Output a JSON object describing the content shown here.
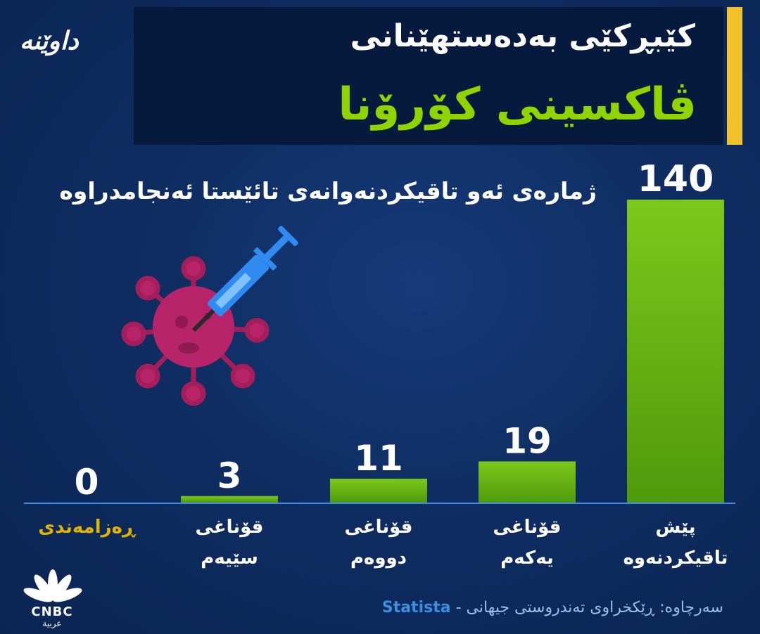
{
  "header": {
    "title_line1": "کێبڕکێی بەدەستهێنانی",
    "title_line2": "ڤاکسینی کۆرۆنا",
    "brand": "داوێنە"
  },
  "subtitle": "ژمارەی ئەو تاقیکردنەوانەی تائێستا ئەنجامدراوە",
  "chart_data": {
    "type": "bar",
    "title": "ژمارەی ئەو تاقیکردنەوانەی تائێستا ئەنجامدراوە",
    "categories": [
      "ڕەزامەندی",
      "قۆناغی سێیەم",
      "قۆناغی دووەم",
      "قۆناغی یەکەم",
      "پێش تاقیکردنەوە"
    ],
    "values": [
      0,
      3,
      11,
      19,
      140
    ],
    "value_labels": [
      "0",
      "3",
      "11",
      "19",
      "140"
    ],
    "category_lines": [
      [
        "ڕەزامەندی"
      ],
      [
        "قۆناغی",
        "سێیەم"
      ],
      [
        "قۆناغی",
        "دووەم"
      ],
      [
        "قۆناغی",
        "یەکەم"
      ],
      [
        "پێش",
        "تاقیکردنەوە"
      ]
    ],
    "highlight_category": "ڕەزامەندی",
    "ylim": [
      0,
      140
    ],
    "bar_color_top": "#7cc81a",
    "bar_color_bottom": "#4f9a0c",
    "baseline_color": "#3a8fe8",
    "highlight_color": "#e0b400",
    "grid": false
  },
  "source": {
    "label": "سەرچاوە: ڕێکخراوی تەندروستی جیهانی -",
    "name_en": "Statista"
  },
  "footer": {
    "cnbc_text": "CNBC",
    "cnbc_sub": "عربية"
  }
}
